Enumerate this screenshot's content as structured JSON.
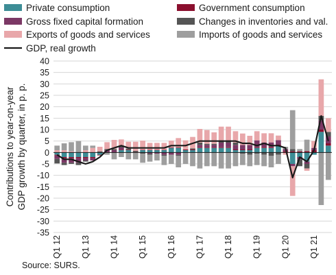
{
  "chart_data": {
    "type": "bar",
    "stacked": true,
    "ylabel": "Contributions to year-on-year GDP growth by quarter, in p. p.",
    "ylim": [
      -35,
      40
    ],
    "yticks": [
      -35,
      -30,
      -25,
      -20,
      -15,
      -10,
      -5,
      0,
      5,
      10,
      15,
      20,
      25,
      30,
      35,
      40
    ],
    "grid": true,
    "legend_position": "top",
    "source": "Source: SURS.",
    "categories": [
      "Q1 12",
      "Q2 12",
      "Q3 12",
      "Q4 12",
      "Q1 13",
      "Q2 13",
      "Q3 13",
      "Q4 13",
      "Q1 14",
      "Q2 14",
      "Q3 14",
      "Q4 14",
      "Q1 15",
      "Q2 15",
      "Q3 15",
      "Q4 15",
      "Q1 16",
      "Q2 16",
      "Q3 16",
      "Q4 16",
      "Q1 17",
      "Q2 17",
      "Q3 17",
      "Q4 17",
      "Q1 18",
      "Q2 18",
      "Q3 18",
      "Q4 18",
      "Q1 19",
      "Q2 19",
      "Q3 19",
      "Q4 19",
      "Q1 20",
      "Q2 20",
      "Q3 20",
      "Q4 20",
      "Q1 21",
      "Q2 21",
      "Q3 21"
    ],
    "x_tick_labels": [
      {
        "index": 0,
        "label": "Q1 12"
      },
      {
        "index": 4,
        "label": "Q1 13"
      },
      {
        "index": 8,
        "label": "Q1 14"
      },
      {
        "index": 12,
        "label": "Q1 15"
      },
      {
        "index": 16,
        "label": "Q1 16"
      },
      {
        "index": 20,
        "label": "Q1 17"
      },
      {
        "index": 24,
        "label": "Q1 18"
      },
      {
        "index": 28,
        "label": "Q1 19"
      },
      {
        "index": 32,
        "label": "Q1 20"
      },
      {
        "index": 36,
        "label": "Q1 21"
      }
    ],
    "series": [
      {
        "name": "Private consumption",
        "color": "#3d8d96",
        "values": [
          -1,
          -2,
          -2,
          -2,
          -2,
          -2,
          -1,
          0,
          0,
          1,
          1,
          0,
          1,
          1,
          1,
          1,
          2,
          2,
          1,
          1,
          2,
          2,
          2,
          2,
          2,
          1,
          1,
          1,
          2,
          2,
          2,
          3,
          0,
          -5,
          -2,
          -4,
          -1,
          9,
          3
        ]
      },
      {
        "name": "Government consumption",
        "color": "#8b0f2e",
        "values": [
          -0.3,
          -0.5,
          -0.5,
          -0.5,
          -0.5,
          -0.5,
          -0.3,
          0,
          0,
          0.2,
          0.2,
          0.2,
          0.2,
          0.2,
          0.2,
          0.2,
          0.2,
          0.3,
          0.3,
          0.3,
          0.3,
          0.3,
          0.3,
          0.3,
          0.3,
          0.3,
          0.3,
          0.3,
          0.3,
          0.4,
          0.4,
          0.4,
          0.5,
          0.5,
          0.5,
          0.6,
          1,
          1,
          1
        ]
      },
      {
        "name": "Gross fixed capital formation",
        "color": "#7b3865",
        "values": [
          -1.5,
          -2,
          -2,
          -2,
          -1,
          -1,
          0,
          1,
          1,
          1,
          0,
          0,
          0,
          -0.5,
          -0.5,
          -1,
          -1,
          -1,
          0,
          0,
          1,
          1,
          1,
          2,
          2,
          2,
          2,
          2,
          3,
          2,
          2,
          2,
          1,
          -1,
          -1,
          -1,
          1,
          4,
          3
        ]
      },
      {
        "name": "Changes in inventories and val.",
        "color": "#555555",
        "values": [
          -2,
          -1,
          -0.5,
          -1,
          -0.5,
          0,
          0.5,
          0.5,
          0.5,
          0.5,
          0.5,
          0.5,
          -0.5,
          -0.5,
          0,
          -0.5,
          0,
          -0.5,
          0,
          0.5,
          1,
          0.5,
          0.5,
          1,
          1,
          1,
          -0.5,
          -1,
          -0.5,
          -1,
          -1.5,
          -1,
          0,
          1,
          -3,
          -2,
          0,
          2,
          2
        ]
      },
      {
        "name": "Exports of goods and services",
        "color": "#e8a7aa",
        "values": [
          1,
          1,
          0.5,
          0,
          1,
          2,
          2,
          3,
          4,
          3,
          3,
          4,
          4,
          3,
          3,
          3,
          3,
          4,
          4,
          5,
          6,
          6,
          5,
          6,
          6,
          5,
          5,
          4,
          4,
          4,
          4,
          2,
          -1,
          -13,
          0,
          -1,
          3,
          16,
          6
        ]
      },
      {
        "name": "Imports of goods and services",
        "color": "#9e9e9e",
        "values": [
          2,
          3,
          4,
          5,
          2,
          1,
          0,
          -1,
          -3,
          -2,
          -3,
          -3,
          -4,
          -3,
          -3,
          -4,
          -4,
          -5,
          -5,
          -6,
          -7,
          -6,
          -6,
          -7,
          -7,
          -6,
          -5,
          -5,
          -5,
          -5,
          -5,
          -4,
          1,
          17,
          1,
          5,
          0,
          -23,
          -12
        ]
      }
    ],
    "line": {
      "name": "GDP, real growth",
      "color": "#1a1a1a",
      "values": [
        -1,
        -3,
        -3,
        -4,
        -5,
        -4,
        -2,
        1,
        2,
        3,
        2,
        2,
        2,
        2,
        2,
        2,
        3,
        3,
        3,
        4,
        5,
        5,
        5,
        5,
        5,
        5,
        4,
        4,
        3,
        4,
        3,
        3,
        2,
        -11,
        -2,
        -4,
        1,
        16,
        5
      ]
    }
  }
}
